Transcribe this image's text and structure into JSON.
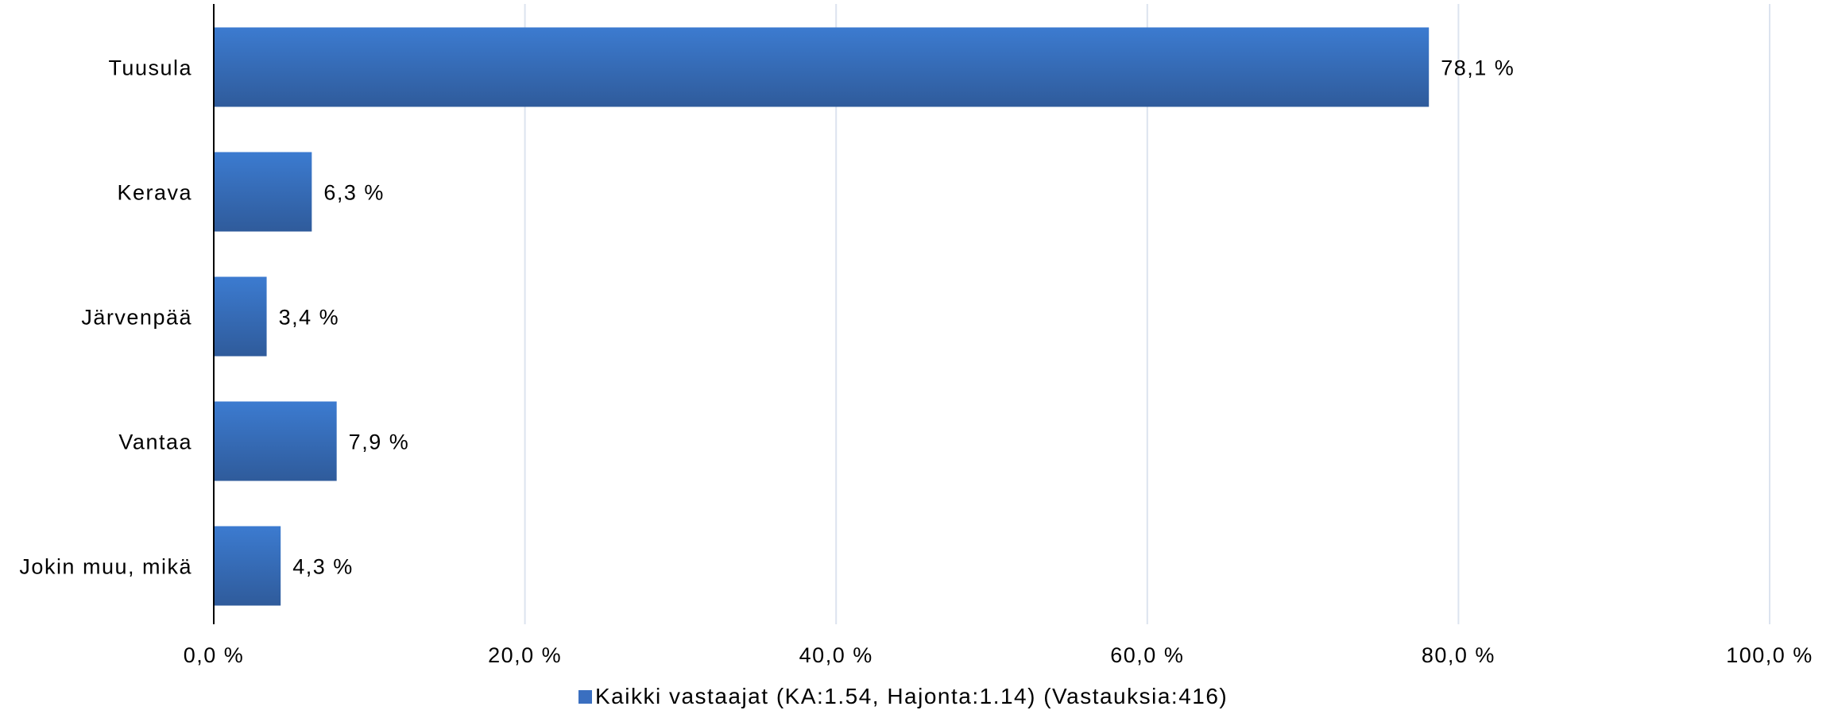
{
  "chart_data": {
    "type": "bar",
    "orientation": "horizontal",
    "categories": [
      "Tuusula",
      "Kerava",
      "Järvenpää",
      "Vantaa",
      "Jokin muu, mikä"
    ],
    "series": [
      {
        "name": "Kaikki vastaajat (KA:1.54, Hajonta:1.14) (Vastauksia:416)",
        "values": [
          78.1,
          6.3,
          3.4,
          7.9,
          4.3
        ],
        "labels": [
          "78,1 %",
          "6,3 %",
          "3,4 %",
          "7,9 %",
          "4,3 %"
        ]
      }
    ],
    "xlim": [
      0,
      100
    ],
    "xticks": [
      0,
      20,
      40,
      60,
      80,
      100
    ],
    "xtick_labels": [
      "0,0 %",
      "20,0 %",
      "40,0 %",
      "60,0 %",
      "80,0 %",
      "100,0 %"
    ],
    "grid": "vertical",
    "legend_position": "bottom",
    "colors": {
      "bar": "#3a6fc0",
      "bar_dark": "#2e5a9e",
      "grid": "#dce3ef"
    }
  }
}
